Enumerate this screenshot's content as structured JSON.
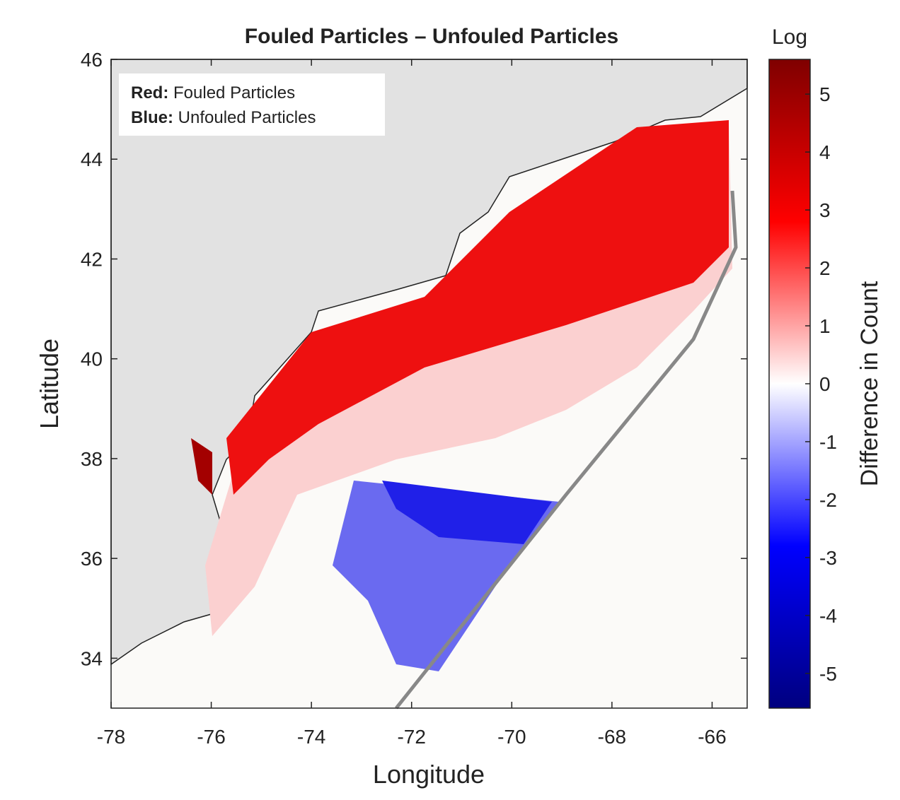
{
  "chart_data": {
    "type": "heatmap-map",
    "title": "Fouled Particles – Unfouled Particles",
    "x_label": "Longitude",
    "y_label": "Latitude",
    "xlim": [
      -78,
      -65.3
    ],
    "ylim": [
      33,
      46
    ],
    "xticks": [
      -78,
      -76,
      -74,
      -72,
      -70,
      -68,
      -66
    ],
    "yticks": [
      34,
      36,
      38,
      40,
      42,
      44,
      46
    ],
    "legend": [
      {
        "key": "Red:",
        "label": "Fouled Particles"
      },
      {
        "key": "Blue:",
        "label": "Unfouled Particles"
      }
    ],
    "colorbar": {
      "title": "Log",
      "label": "Difference in Count",
      "clim": [
        -5.6,
        5.6
      ],
      "ticks": [
        -5,
        -4,
        -3,
        -2,
        -1,
        0,
        1,
        2,
        3,
        4,
        5
      ],
      "colormap": [
        "#00007f",
        "#0000ff",
        "#ffffff",
        "#ff0000",
        "#7f0000"
      ]
    }
  }
}
